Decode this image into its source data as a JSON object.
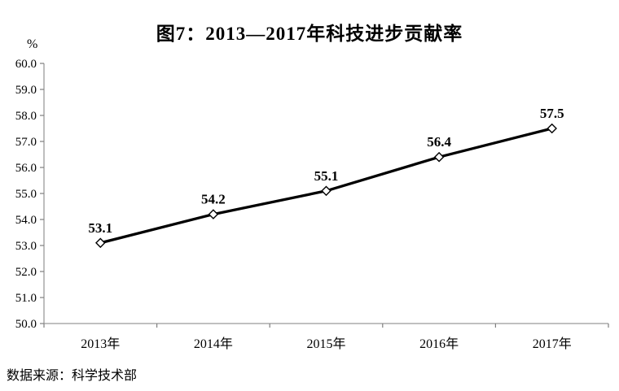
{
  "source_note": "数据来源：科学技术部",
  "chart_data": {
    "type": "line",
    "title": "图7：2013—2017年科技进步贡献率",
    "ylabel": "%",
    "xlabel": "",
    "categories": [
      "2013年",
      "2014年",
      "2015年",
      "2016年",
      "2017年"
    ],
    "values": [
      53.1,
      54.2,
      55.1,
      56.4,
      57.5
    ],
    "ylim": [
      50.0,
      60.0
    ],
    "y_tick_step": 1.0,
    "grid": false,
    "legend_position": "none",
    "line_color": "#000000",
    "marker_style": "open-diamond",
    "marker_fill": "#ffffff",
    "marker_stroke": "#000000",
    "axis_color": "#9b9b9b",
    "tick_color": "#7f7f7f",
    "label_color": "#000000"
  }
}
